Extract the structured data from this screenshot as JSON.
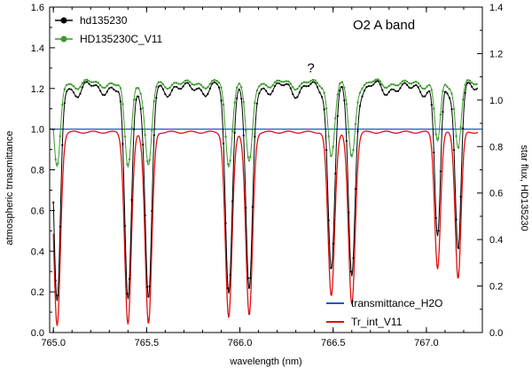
{
  "chart_data": {
    "type": "line",
    "title": "O2 A band",
    "xlabel": "wavelength (nm)",
    "ylabel_left": "atmospheric trnasmittance",
    "ylabel_right": "star flux, HD135230",
    "xlim": [
      764.98,
      767.3
    ],
    "ylim_left": [
      0.0,
      1.6
    ],
    "ylim_right": [
      0.0,
      1.4
    ],
    "x_ticks": [
      "765.0",
      "765.5",
      "766.0",
      "766.5",
      "767.0"
    ],
    "x_tick_values": [
      765.0,
      765.5,
      766.0,
      766.5,
      767.0
    ],
    "y_left_ticks": [
      "0.0",
      "0.2",
      "0.4",
      "0.6",
      "0.8",
      "1.0",
      "1.2",
      "1.4",
      "1.6"
    ],
    "y_left_tick_values": [
      0.0,
      0.2,
      0.4,
      0.6,
      0.8,
      1.0,
      1.2,
      1.4,
      1.6
    ],
    "y_right_ticks": [
      "0.0",
      "0.2",
      "0.4",
      "0.6",
      "0.8",
      "1.0",
      "1.2",
      "1.4"
    ],
    "y_right_tick_values": [
      0.0,
      0.2,
      0.4,
      0.6,
      0.8,
      1.0,
      1.2,
      1.4
    ],
    "annotation": "?",
    "annotation_at": {
      "x": 766.38,
      "y": 1.28
    },
    "grid": false,
    "legend_top": [
      {
        "label": "hd135230",
        "color": "#000000",
        "marker": "circle"
      },
      {
        "label": "HD135230C_V11",
        "color": "#3a9a2a",
        "marker": "circle"
      }
    ],
    "legend_bottom": [
      {
        "label": "transmittance_H2O",
        "color": "#2255cc"
      },
      {
        "label": "Tr_int_V11",
        "color": "#dd1111"
      }
    ],
    "baseline": {
      "name": "transmittance_H2O",
      "value": 1.0,
      "color": "#2255cc"
    },
    "absorption_lines": [
      {
        "x": 765.02,
        "depth_red": 0.97,
        "width": 0.025
      },
      {
        "x": 765.4,
        "depth_red": 0.96,
        "width": 0.025
      },
      {
        "x": 765.51,
        "depth_red": 0.96,
        "width": 0.025
      },
      {
        "x": 765.94,
        "depth_red": 0.93,
        "width": 0.025
      },
      {
        "x": 766.05,
        "depth_red": 0.92,
        "width": 0.025
      },
      {
        "x": 766.49,
        "depth_red": 0.82,
        "width": 0.025
      },
      {
        "x": 766.6,
        "depth_red": 0.86,
        "width": 0.025
      },
      {
        "x": 767.06,
        "depth_red": 0.68,
        "width": 0.022
      },
      {
        "x": 767.17,
        "depth_red": 0.73,
        "width": 0.022
      }
    ],
    "series": [
      {
        "name": "Tr_int_V11",
        "color": "#dd1111",
        "baseline": 0.985
      },
      {
        "name": "hd135230",
        "color": "#000000",
        "baseline_right": 1.05,
        "line_depth_scale": 0.9
      },
      {
        "name": "HD135230C_V11",
        "color": "#3a9a2a",
        "baseline_right": 1.07,
        "line_depth_scale": 0.35
      }
    ]
  }
}
